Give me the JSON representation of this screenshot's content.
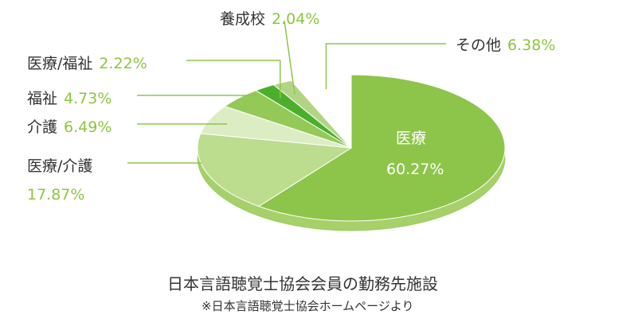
{
  "chart_data": {
    "type": "pie",
    "title": "日本言語聴覚士協会会員の勤務先施設",
    "note": "※日本言語聴覚士協会ホームページより",
    "unit": "%",
    "slices": [
      {
        "label": "医療",
        "value": 60.27,
        "value_label": "60.27%",
        "color": "#8dc54a"
      },
      {
        "label": "医療/介護",
        "value": 17.87,
        "value_label": "17.87%",
        "color": "#bcdc8e"
      },
      {
        "label": "介護",
        "value": 6.49,
        "value_label": "6.49%",
        "color": "#dcedc4"
      },
      {
        "label": "福祉",
        "value": 4.73,
        "value_label": "4.73%",
        "color": "#94c957"
      },
      {
        "label": "医療/福祉",
        "value": 2.22,
        "value_label": "2.22%",
        "color": "#4caf2c"
      },
      {
        "label": "養成校",
        "value": 2.04,
        "value_label": "2.04%",
        "color": "#b2d585"
      },
      {
        "label": "その他",
        "value": 6.38,
        "value_label": "6.38%",
        "color": "#ffffff"
      }
    ]
  }
}
